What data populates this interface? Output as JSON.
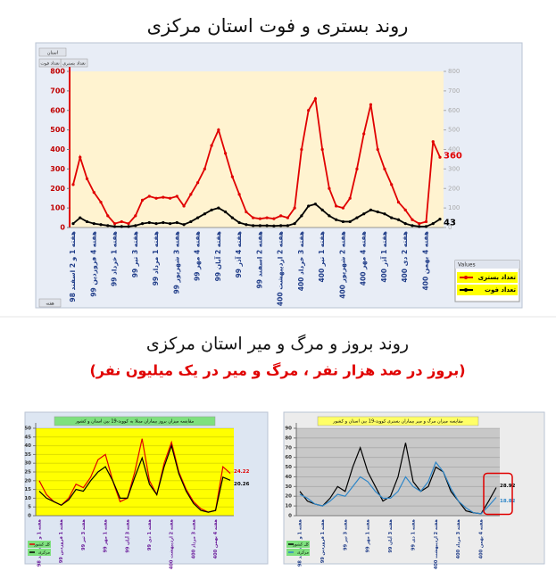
{
  "header": {
    "title": "روند بستری و فوت استان مرکزی",
    "section2_title": "روند بروز و مرگ و میر استان مرکزی",
    "section2_subtitle": "(بروز در صد هزار نفر ، مرگ و میر در یک میلیون نفر)"
  },
  "chart_data": [
    {
      "type": "line",
      "field_buttons": [
        "استان",
        "تعداد بستری",
        "تعداد فوت",
        "هفته"
      ],
      "legend_title": "Values",
      "legend": "lower-right",
      "categories": [
        "هفته 1 و 2 اسفند 98",
        null,
        null,
        "هفته 4 فروردین 99",
        null,
        null,
        "هفته 1 خرداد 99",
        null,
        null,
        "هفته 3 تیر 99",
        null,
        null,
        "هفته 1 مرداد 99",
        null,
        null,
        "هفته 3 شهریور 99",
        null,
        null,
        "هفته 4 مهر 99",
        null,
        null,
        "هفته 2 آبان 99",
        null,
        null,
        "هفته 4 آذر 99",
        null,
        null,
        "هفته 2 اسفند 99",
        null,
        null,
        "هفته 2 اردیبهشت 400",
        null,
        null,
        "هفته 3 خرداد 400",
        null,
        null,
        "هفته 1 تیر 400",
        null,
        null,
        "هفته 2 شهریور 400",
        null,
        null,
        "هفته 4 مهر 400",
        null,
        null,
        "هفته 1 آذر 400",
        null,
        null,
        "هفته 2 دی 400",
        null,
        null,
        "هفته 4 بهمن 400",
        null,
        null
      ],
      "series": [
        {
          "name": "تعداد بستری",
          "color": "#e00000",
          "values": [
            220,
            360,
            250,
            180,
            130,
            60,
            20,
            30,
            20,
            60,
            140,
            160,
            150,
            155,
            150,
            160,
            110,
            170,
            230,
            300,
            420,
            500,
            380,
            260,
            170,
            80,
            50,
            45,
            50,
            45,
            60,
            50,
            100,
            400,
            600,
            660,
            400,
            200,
            110,
            100,
            150,
            300,
            480,
            630,
            400,
            300,
            220,
            130,
            90,
            40,
            20,
            30,
            440,
            360
          ]
        },
        {
          "name": "تعداد فوت",
          "color": "#000000",
          "values": [
            20,
            50,
            30,
            20,
            15,
            10,
            5,
            5,
            5,
            10,
            20,
            25,
            20,
            25,
            20,
            25,
            15,
            30,
            50,
            70,
            90,
            100,
            80,
            50,
            25,
            15,
            10,
            10,
            10,
            8,
            10,
            10,
            20,
            60,
            110,
            120,
            90,
            60,
            40,
            30,
            30,
            50,
            70,
            90,
            80,
            70,
            50,
            40,
            20,
            10,
            5,
            5,
            20,
            43
          ]
        }
      ],
      "ylim": [
        0,
        800
      ],
      "yticks": [
        0,
        100,
        200,
        300,
        400,
        500,
        600,
        700,
        800
      ],
      "y2lim": [
        0,
        800
      ],
      "y2ticks": [
        0,
        100,
        200,
        300,
        400,
        500,
        600,
        700,
        800
      ]
    },
    {
      "type": "line",
      "title": "مقایسه میزان بروز بیماران مبتلا به کووید-19 بین استان و کشور",
      "legend": "lower-left",
      "categories": [
        "هفته 1 و 2 اسفند 98",
        null,
        null,
        "هفته 1 فروردین 99",
        null,
        null,
        "هفته 3 تیر 99",
        null,
        null,
        "هفته 1 مهر 99",
        null,
        null,
        "هفته 3 آبان 99",
        null,
        null,
        "هفته 1 دی 99",
        null,
        null,
        "هفته 2 اردیبهشت 400",
        null,
        null,
        "هفته 3 مرداد 400",
        null,
        null,
        "هفته 4 بهمن 400",
        null,
        null
      ],
      "series": [
        {
          "name": "کل کشور",
          "color": "#e00000",
          "values": [
            20,
            12,
            8,
            6,
            10,
            18,
            16,
            22,
            32,
            35,
            20,
            8,
            10,
            25,
            44,
            20,
            12,
            30,
            42,
            25,
            15,
            8,
            4,
            2,
            3,
            28,
            24.22
          ]
        },
        {
          "name": "مرکزی",
          "color": "#000000",
          "values": [
            14,
            10,
            8,
            6,
            9,
            15,
            14,
            20,
            25,
            28,
            20,
            10,
            10,
            22,
            33,
            18,
            12,
            28,
            40,
            24,
            14,
            7,
            3,
            2,
            3,
            22,
            20.26
          ]
        }
      ],
      "ylim": [
        0,
        50
      ],
      "yticks": [
        0,
        5,
        10,
        15,
        20,
        25,
        30,
        35,
        40,
        45,
        50
      ]
    },
    {
      "type": "line",
      "title": "مقایسه میزان مرگ و میر بیماران بستری کووید-19 بین استان و کشور",
      "legend": "lower-left",
      "categories": [
        "هفته 1 و 2 اسفند 98",
        null,
        null,
        "هفته 1 فروردین 99",
        null,
        null,
        "هفته 3 تیر 99",
        null,
        null,
        "هفته 1 مهر 99",
        null,
        null,
        "هفته 3 آبان 99",
        null,
        null,
        "هفته 1 دی 99",
        null,
        null,
        "هفته 2 اردیبهشت 400",
        null,
        null,
        "هفته 3 مرداد 400",
        null,
        null,
        "هفته 4 بهمن 400",
        null,
        null
      ],
      "series": [
        {
          "name": "کل کشور",
          "color": "#000000",
          "values": [
            25,
            15,
            12,
            10,
            18,
            30,
            25,
            50,
            70,
            45,
            30,
            15,
            20,
            40,
            75,
            35,
            25,
            30,
            50,
            45,
            25,
            15,
            5,
            3,
            2,
            15,
            28.92
          ]
        },
        {
          "name": "مرکزی",
          "color": "#2e86c8",
          "values": [
            22,
            18,
            12,
            10,
            15,
            22,
            20,
            30,
            40,
            35,
            25,
            18,
            18,
            25,
            40,
            30,
            25,
            35,
            55,
            45,
            28,
            15,
            8,
            3,
            2,
            10,
            18.82
          ]
        }
      ],
      "ylim": [
        0,
        90
      ],
      "yticks": [
        0,
        10,
        20,
        30,
        40,
        50,
        60,
        70,
        80,
        90
      ]
    }
  ]
}
